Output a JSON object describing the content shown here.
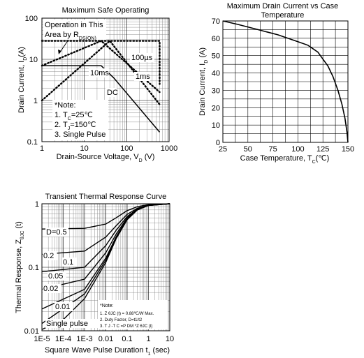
{
  "chart_data": [
    {
      "type": "line",
      "title": "Maximum Safe Operating",
      "xlabel": "Drain-Source Voltage, V",
      "xlabel_sub": "D",
      "xlabel_unit": " (V)",
      "ylabel": "Drain Current, I",
      "ylabel_sub": "D",
      "ylabel_unit": "(A)",
      "xscale": "log",
      "yscale": "log",
      "xlim": [
        1,
        1000
      ],
      "ylim": [
        0.1,
        100
      ],
      "xticks": [
        {
          "v": 1,
          "label": "1"
        },
        {
          "v": 10,
          "label": "10"
        },
        {
          "v": 100,
          "label": "100"
        },
        {
          "v": 1000,
          "label": "1000"
        }
      ],
      "yticks": [
        {
          "v": 0.1,
          "label": "0.1"
        },
        {
          "v": 1,
          "label": "1"
        },
        {
          "v": 10,
          "label": "10"
        },
        {
          "v": 100,
          "label": "100"
        }
      ],
      "grid": true,
      "series": [
        {
          "name": "DC",
          "style": "solid",
          "points": [
            [
              1,
              7
            ],
            [
              25,
              7
            ],
            [
              50,
              3.5
            ],
            [
              600,
              0.17
            ]
          ]
        },
        {
          "name": "10ms",
          "style": "dotted",
          "points": [
            [
              1,
              1
            ],
            [
              40,
              28
            ],
            [
              600,
              0.8
            ]
          ]
        },
        {
          "name": "1ms",
          "style": "dotted",
          "points": [
            [
              1,
              7
            ],
            [
              25,
              28
            ],
            [
              600,
              1.6
            ]
          ]
        },
        {
          "name": "100µs",
          "style": "dotted",
          "points": [
            [
              1,
              28
            ],
            [
              600,
              28
            ],
            [
              600,
              2.5
            ]
          ]
        }
      ],
      "annotations": {
        "operation_line1": "Operation in This",
        "operation_line2": "Area by R",
        "operation_sub": "DS(ON)",
        "label_100us": "100µs",
        "label_10ms": "10ms",
        "label_1ms": "1ms",
        "label_dc": "DC",
        "note_title": "*Note:",
        "note1_pre": "1. T",
        "note1_sub": "C",
        "note1_post": "=25℃",
        "note2_pre": "2. T",
        "note2_sub": "J",
        "note2_post": "=150℃",
        "note3": "3. Single Pulse"
      }
    },
    {
      "type": "line",
      "title_line1": "Maximum Drain Current vs Case",
      "title_line2": "Temperature",
      "xlabel": "Case Temperature, T",
      "xlabel_sub": "C",
      "xlabel_unit": "(℃)",
      "ylabel": "Drain Current, I",
      "ylabel_sub": "D",
      "ylabel_unit": " (A)",
      "xlim": [
        25,
        150
      ],
      "ylim": [
        0,
        70
      ],
      "xticks": [
        {
          "v": 25,
          "label": "25"
        },
        {
          "v": 50,
          "label": "50"
        },
        {
          "v": 75,
          "label": "75"
        },
        {
          "v": 100,
          "label": "100"
        },
        {
          "v": 125,
          "label": "125"
        },
        {
          "v": 150,
          "label": "150"
        }
      ],
      "yticks": [
        {
          "v": 0,
          "label": "0"
        },
        {
          "v": 10,
          "label": "10"
        },
        {
          "v": 20,
          "label": "20"
        },
        {
          "v": 30,
          "label": "30"
        },
        {
          "v": 40,
          "label": "40"
        },
        {
          "v": 50,
          "label": "50"
        },
        {
          "v": 60,
          "label": "60"
        },
        {
          "v": 70,
          "label": "70"
        }
      ],
      "grid": true,
      "series": [
        {
          "points": [
            [
              25,
              70
            ],
            [
              40,
              68
            ],
            [
              60,
              65
            ],
            [
              80,
              62
            ],
            [
              100,
              58
            ],
            [
              110,
              56
            ],
            [
              120,
              52
            ],
            [
              125,
              48
            ],
            [
              130,
              44
            ],
            [
              135,
              38
            ],
            [
              140,
              30
            ],
            [
              144,
              22
            ],
            [
              147,
              14
            ],
            [
              149,
              6
            ],
            [
              150,
              0
            ]
          ]
        }
      ]
    },
    {
      "type": "line",
      "title": "Transient  Thermal Response Curve",
      "xlabel": "Square Wave Pulse Duration t",
      "xlabel_sub": "1",
      "xlabel_unit": " (sec)",
      "ylabel": "Thermal Response, Z",
      "ylabel_sub": "θJC",
      "ylabel_unit": " (t)",
      "xscale": "log",
      "yscale": "log",
      "xlim": [
        1e-05,
        10
      ],
      "ylim": [
        0.01,
        1
      ],
      "xticks": [
        {
          "v": 1e-05,
          "label": "1E-5"
        },
        {
          "v": 0.0001,
          "label": "1E-4"
        },
        {
          "v": 0.001,
          "label": "1E-3"
        },
        {
          "v": 0.01,
          "label": "0.01"
        },
        {
          "v": 0.1,
          "label": "0.1"
        },
        {
          "v": 1,
          "label": "1"
        },
        {
          "v": 10,
          "label": "10"
        }
      ],
      "yticks": [
        {
          "v": 0.01,
          "label": "0.01"
        },
        {
          "v": 0.1,
          "label": "0.1"
        },
        {
          "v": 1,
          "label": "1"
        }
      ],
      "grid": true,
      "series": [
        {
          "name": "D=0.5",
          "points": [
            [
              1e-05,
              0.4
            ],
            [
              0.001,
              0.41
            ],
            [
              0.01,
              0.48
            ],
            [
              0.03,
              0.6
            ],
            [
              0.1,
              0.78
            ],
            [
              0.3,
              0.9
            ],
            [
              1,
              0.97
            ],
            [
              10,
              1
            ]
          ]
        },
        {
          "name": "0.2",
          "points": [
            [
              1e-05,
              0.16
            ],
            [
              0.001,
              0.18
            ],
            [
              0.01,
              0.3
            ],
            [
              0.03,
              0.45
            ],
            [
              0.1,
              0.68
            ],
            [
              0.3,
              0.85
            ],
            [
              1,
              0.95
            ],
            [
              10,
              1
            ]
          ]
        },
        {
          "name": "0.1",
          "points": [
            [
              1e-05,
              0.085
            ],
            [
              0.001,
              0.1
            ],
            [
              0.01,
              0.22
            ],
            [
              0.03,
              0.38
            ],
            [
              0.1,
              0.63
            ],
            [
              0.3,
              0.83
            ],
            [
              1,
              0.95
            ],
            [
              10,
              1
            ]
          ]
        },
        {
          "name": "0.05",
          "points": [
            [
              1e-05,
              0.045
            ],
            [
              0.001,
              0.065
            ],
            [
              0.01,
              0.17
            ],
            [
              0.03,
              0.33
            ],
            [
              0.1,
              0.6
            ],
            [
              0.3,
              0.82
            ],
            [
              1,
              0.94
            ],
            [
              10,
              1
            ]
          ]
        },
        {
          "name": "0.02",
          "points": [
            [
              1e-05,
              0.022
            ],
            [
              0.001,
              0.045
            ],
            [
              0.01,
              0.14
            ],
            [
              0.03,
              0.3
            ],
            [
              0.1,
              0.58
            ],
            [
              0.3,
              0.81
            ],
            [
              1,
              0.94
            ],
            [
              10,
              1
            ]
          ]
        },
        {
          "name": "0.01",
          "points": [
            [
              1e-05,
              0.013
            ],
            [
              0.001,
              0.038
            ],
            [
              0.01,
              0.13
            ],
            [
              0.03,
              0.29
            ],
            [
              0.1,
              0.57
            ],
            [
              0.3,
              0.8
            ],
            [
              1,
              0.94
            ],
            [
              10,
              1
            ]
          ]
        },
        {
          "name": "Single pulse",
          "points": [
            [
              1e-05,
              0.0105
            ],
            [
              0.0001,
              0.015
            ],
            [
              0.001,
              0.032
            ],
            [
              0.01,
              0.12
            ],
            [
              0.03,
              0.28
            ],
            [
              0.1,
              0.56
            ],
            [
              0.3,
              0.8
            ],
            [
              1,
              0.94
            ],
            [
              10,
              1
            ]
          ]
        }
      ],
      "annotations": {
        "note_title": "*Note:",
        "note1": "1.  Z θJC (t) = 0.88℃/W Max.",
        "note2": "2.  Duty Factor,  D=t1/t2",
        "note3": "3.  T J -T C =P DM *Z θJC (t)"
      }
    }
  ]
}
